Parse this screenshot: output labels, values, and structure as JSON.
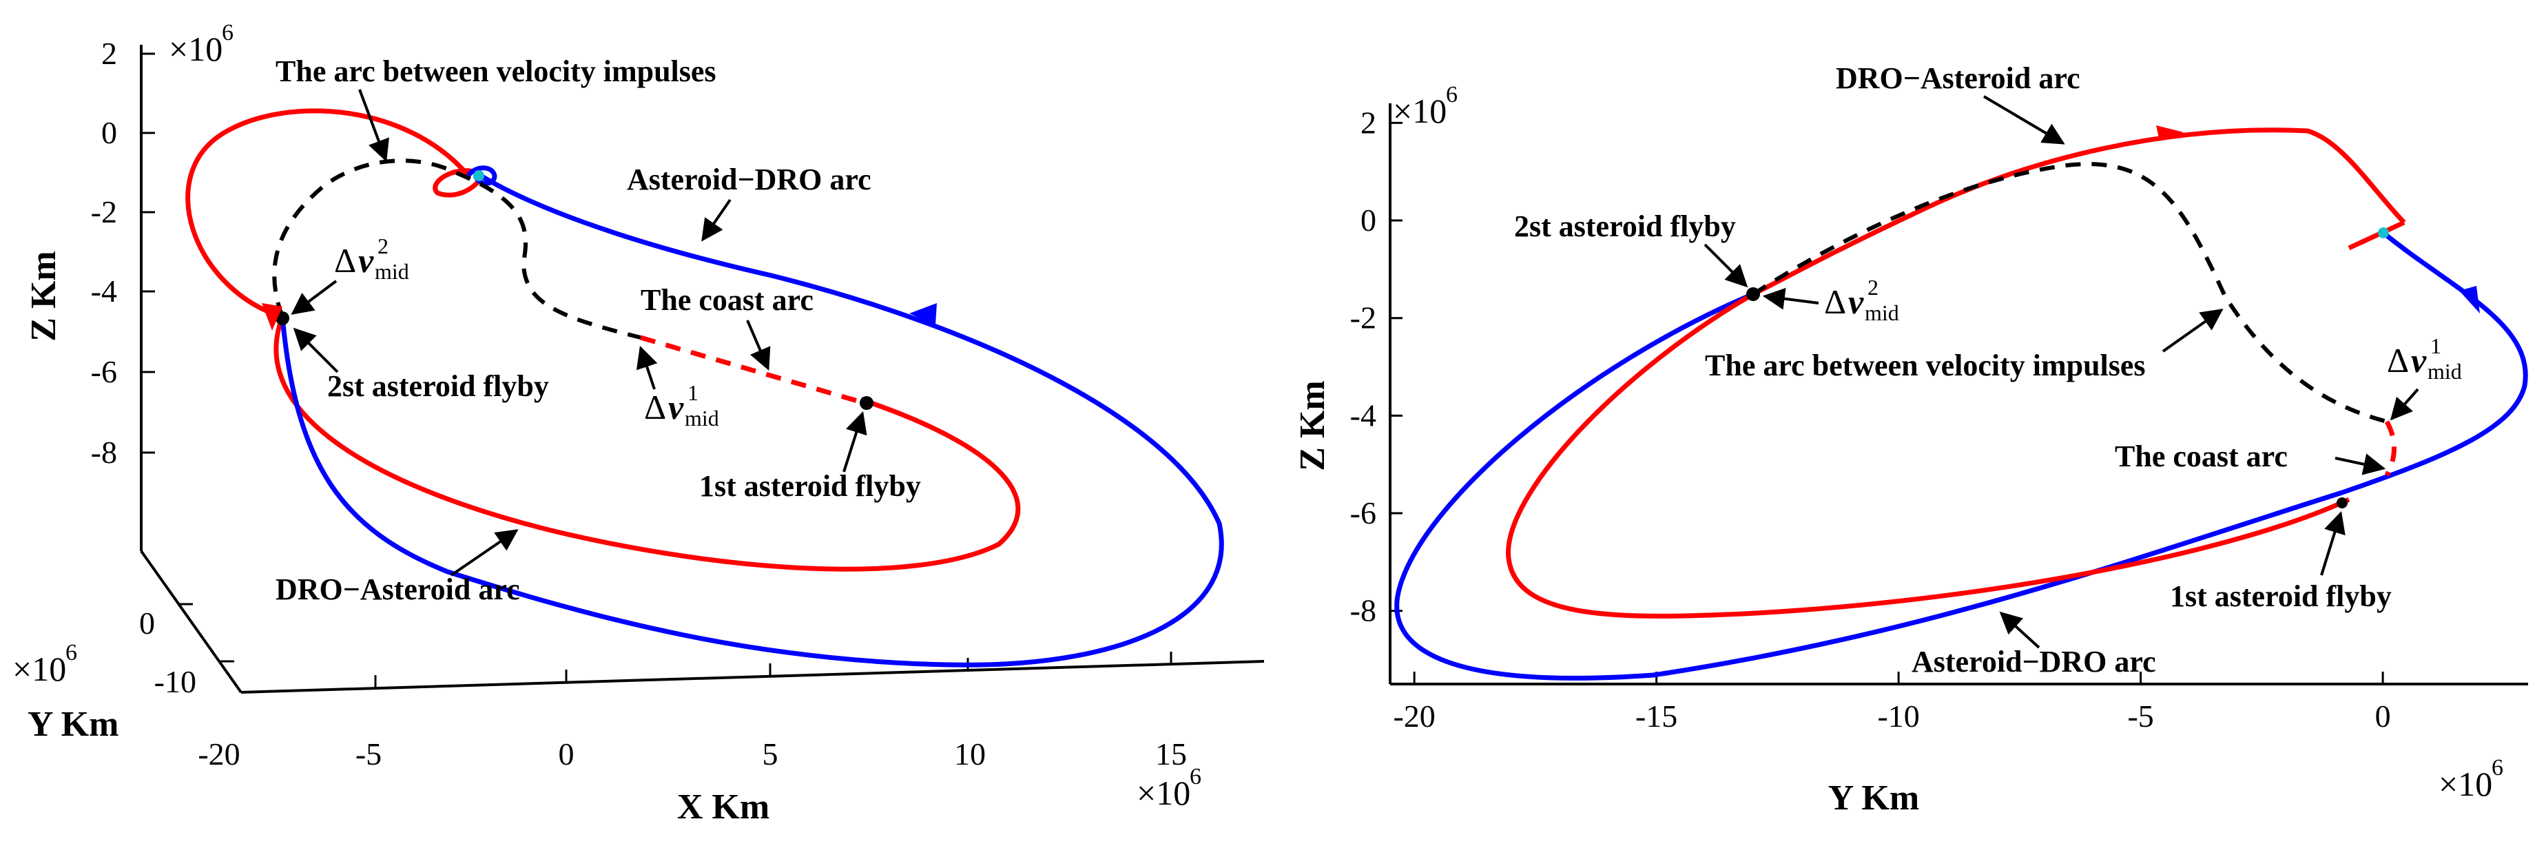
{
  "chart_data": [
    {
      "type": "line",
      "view": "3d",
      "multiplier": "×10",
      "multiplier_exp": "6",
      "x_axis": {
        "label": "X Km",
        "ticks": [
          "-20",
          "-5",
          "0",
          "5",
          "10",
          "15"
        ]
      },
      "y_axis": {
        "label": "Y Km",
        "ticks": [
          "0",
          "-10"
        ]
      },
      "z_axis": {
        "label": "Z Km",
        "ticks": [
          "2",
          "0",
          "-2",
          "-4",
          "-6",
          "-8"
        ]
      },
      "series": [
        {
          "role": "DRO−Asteroid arc",
          "color": "#ff0000",
          "style": "solid"
        },
        {
          "role": "Asteroid−DRO arc",
          "color": "#0000ff",
          "style": "solid"
        },
        {
          "role": "The arc between velocity impulses",
          "color": "#000000",
          "style": "dashed"
        },
        {
          "role": "The coast arc",
          "color": "#ff0000",
          "style": "dashed"
        }
      ],
      "annotations": {
        "arc_between": "The arc between velocity impulses",
        "asteroid_dro": "Asteroid−DRO arc",
        "coast": "The coast arc",
        "flyby2": "2st asteroid flyby",
        "flyby1": "1st asteroid flyby",
        "dro_asteroid": "DRO−Asteroid arc",
        "dv2_sym": "Δ",
        "dv2_v": "v",
        "dv2_sup": "2",
        "dv2_sub": "mid",
        "dv1_sym": "Δ",
        "dv1_v": "v",
        "dv1_sup": "1",
        "dv1_sub": "mid"
      }
    },
    {
      "type": "line",
      "view": "2d",
      "multiplier": "×10",
      "multiplier_exp": "6",
      "x_axis": {
        "label": "Y Km",
        "ticks": [
          "-20",
          "-15",
          "-10",
          "-5",
          "0"
        ],
        "values": [
          -20,
          -15,
          -10,
          -5,
          0
        ],
        "range": [
          -20.5,
          3
        ]
      },
      "y_axis": {
        "label": "Z Km",
        "ticks": [
          "2",
          "0",
          "-2",
          "-4",
          "-6",
          "-8"
        ],
        "values": [
          2,
          0,
          -2,
          -4,
          -6,
          -8
        ],
        "range": [
          -9.5,
          2.4
        ]
      },
      "series": [
        {
          "role": "DRO−Asteroid arc",
          "color": "#ff0000",
          "style": "solid"
        },
        {
          "role": "Asteroid−DRO arc",
          "color": "#0000ff",
          "style": "solid"
        },
        {
          "role": "The arc between velocity impulses",
          "color": "#000000",
          "style": "dashed"
        },
        {
          "role": "The coast arc",
          "color": "#ff0000",
          "style": "dashed"
        }
      ],
      "annotations": {
        "dro_asteroid": "DRO−Asteroid arc",
        "flyby2": "2st asteroid flyby",
        "arc_between": "The arc between velocity impulses",
        "coast": "The coast arc",
        "flyby1": "1st asteroid flyby",
        "asteroid_dro": "Asteroid−DRO arc",
        "dv2_sym": "Δ",
        "dv2_v": "v",
        "dv2_sup": "2",
        "dv2_sub": "mid",
        "dv1_sym": "Δ",
        "dv1_v": "v",
        "dv1_sup": "1",
        "dv1_sub": "mid"
      }
    }
  ]
}
